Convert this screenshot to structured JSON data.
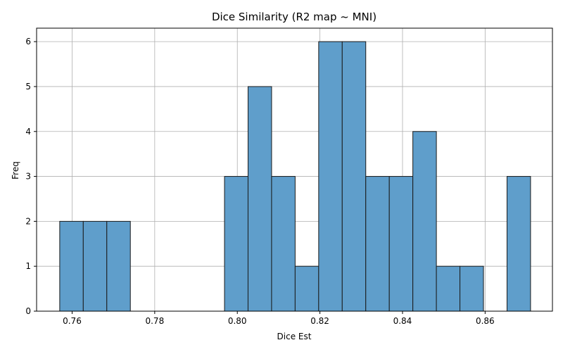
{
  "chart_data": {
    "type": "bar",
    "title": "Dice Similarity (R2 map ~ MNI)",
    "xlabel": "Dice Est",
    "ylabel": "Freq",
    "xlim": [
      0.7514,
      0.8763
    ],
    "ylim": [
      0,
      6.3
    ],
    "x_ticks": [
      0.76,
      0.78,
      0.8,
      0.82,
      0.84,
      0.86
    ],
    "y_ticks": [
      0,
      1,
      2,
      3,
      4,
      5,
      6
    ],
    "grid": true,
    "bar_color": "#5f9ecb",
    "edge_color": "#1a1a1a",
    "bins": [
      {
        "x0": 0.757,
        "x1": 0.7627,
        "count": 2
      },
      {
        "x0": 0.7627,
        "x1": 0.7684,
        "count": 2
      },
      {
        "x0": 0.7684,
        "x1": 0.7741,
        "count": 2
      },
      {
        "x0": 0.7741,
        "x1": 0.7798,
        "count": 0
      },
      {
        "x0": 0.7798,
        "x1": 0.7855,
        "count": 0
      },
      {
        "x0": 0.7855,
        "x1": 0.7912,
        "count": 0
      },
      {
        "x0": 0.7912,
        "x1": 0.7969,
        "count": 0
      },
      {
        "x0": 0.7969,
        "x1": 0.8026,
        "count": 3
      },
      {
        "x0": 0.8026,
        "x1": 0.8083,
        "count": 5
      },
      {
        "x0": 0.8083,
        "x1": 0.814,
        "count": 3
      },
      {
        "x0": 0.814,
        "x1": 0.8197,
        "count": 1
      },
      {
        "x0": 0.8197,
        "x1": 0.8254,
        "count": 6
      },
      {
        "x0": 0.8254,
        "x1": 0.8311,
        "count": 6
      },
      {
        "x0": 0.8311,
        "x1": 0.8368,
        "count": 3
      },
      {
        "x0": 0.8368,
        "x1": 0.8425,
        "count": 3
      },
      {
        "x0": 0.8425,
        "x1": 0.8482,
        "count": 4
      },
      {
        "x0": 0.8482,
        "x1": 0.8539,
        "count": 1
      },
      {
        "x0": 0.8539,
        "x1": 0.8596,
        "count": 1
      },
      {
        "x0": 0.8596,
        "x1": 0.8653,
        "count": 0
      },
      {
        "x0": 0.8653,
        "x1": 0.871,
        "count": 3
      }
    ]
  }
}
